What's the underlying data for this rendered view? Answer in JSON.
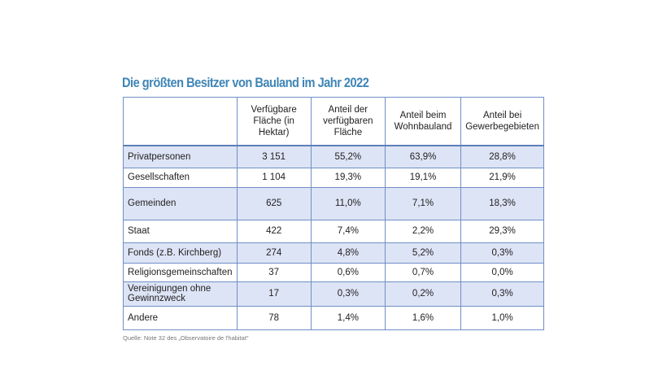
{
  "chart_data": {
    "type": "table",
    "title": "Die größten Besitzer von Bauland im Jahr 2022",
    "columns": [
      "",
      "Verfügbare Fläche (in Hektar)",
      "Anteil der verfügbaren Fläche",
      "Anteil beim Wohnbauland",
      "Anteil bei Gewerbegebieten"
    ],
    "rows": [
      {
        "label": "Privatpersonen",
        "values": [
          "3 151",
          "55,2%",
          "63,9%",
          "28,8%"
        ]
      },
      {
        "label": "Gesellschaften",
        "values": [
          "1 104",
          "19,3%",
          "19,1%",
          "21,9%"
        ]
      },
      {
        "label": "Gemeinden",
        "values": [
          "625",
          "11,0%",
          "7,1%",
          "18,3%"
        ]
      },
      {
        "label": "Staat",
        "values": [
          "422",
          "7,4%",
          "2,2%",
          "29,3%"
        ]
      },
      {
        "label": "Fonds (z.B. Kirchberg)",
        "values": [
          "274",
          "4,8%",
          "5,2%",
          "0,3%"
        ]
      },
      {
        "label": "Religionsgemeinschaften",
        "values": [
          "37",
          "0,6%",
          "0,7%",
          "0,0%"
        ]
      },
      {
        "label": "Vereinigungen ohne Gewinnzweck",
        "values": [
          "17",
          "0,3%",
          "0,2%",
          "0,3%"
        ]
      },
      {
        "label": "Andere",
        "values": [
          "78",
          "1,4%",
          "1,6%",
          "1,0%"
        ]
      }
    ],
    "source": "Quelle: Note 32 des „Observatoire de l'habitat\"",
    "colors": {
      "title": "#3f86b6",
      "border": "#6f8fc6",
      "shaded_row": "#dde4f5"
    }
  }
}
